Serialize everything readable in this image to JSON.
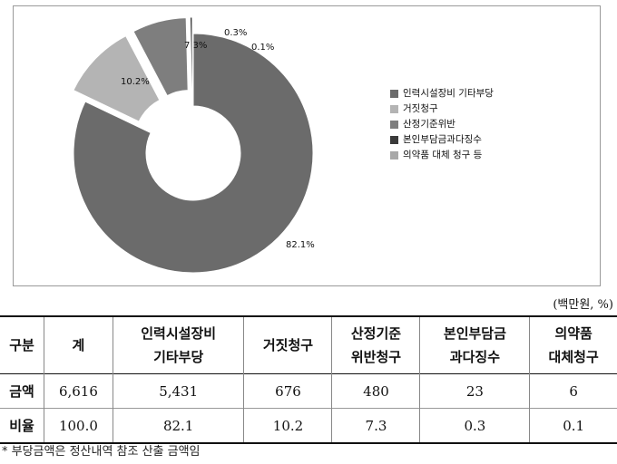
{
  "chart_data": {
    "type": "pie",
    "categories": [
      "인력시설장비 기타부당",
      "거짓청구",
      "산정기준위반",
      "본인부담금과다징수",
      "의약품 대체 청구 등"
    ],
    "values": [
      82.1,
      10.2,
      7.3,
      0.3,
      0.1
    ],
    "data_labels": [
      "82.1%",
      "10.2%",
      "7.3%",
      "0.3%",
      "0.1%"
    ],
    "colors": [
      "#6b6b6b",
      "#b4b4b4",
      "#7e7e7e",
      "#3a3a3a",
      "#a8a8a8"
    ],
    "donut": true,
    "exploded": true,
    "legend_position": "right"
  },
  "unit_note": "(백만원, %)",
  "table": {
    "headers": [
      "구분",
      "계",
      "인력시설장비\n기타부당",
      "거짓청구",
      "산정기준\n위반청구",
      "본인부담금\n과다징수",
      "의약품\n대체청구"
    ],
    "rows": [
      [
        "금액",
        "6,616",
        "5,431",
        "676",
        "480",
        "23",
        "6"
      ],
      [
        "비율",
        "100.0",
        "82.1",
        "10.2",
        "7.3",
        "0.3",
        "0.1"
      ]
    ]
  },
  "footnote": "* 부당금액은 정산내역 참조 산출 금액임"
}
